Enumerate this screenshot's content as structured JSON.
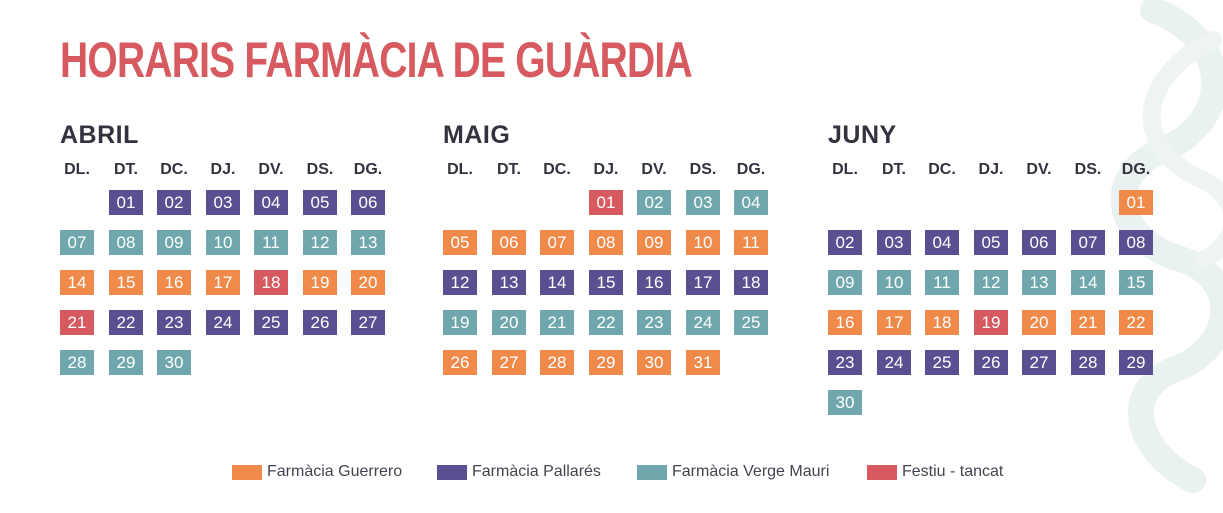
{
  "title": "HORARIS FARMÀCIA DE GUÀRDIA",
  "colors": {
    "G": "#f08a4b",
    "P": "#5b4f91",
    "V": "#6fa7ad",
    "F": "#d65a60"
  },
  "weekdays": [
    "DL.",
    "DT.",
    "DC.",
    "DJ.",
    "DV.",
    "DS.",
    "DG."
  ],
  "months": [
    {
      "name": "ABRIL",
      "days": [
        {
          "d": "01",
          "c": "P"
        },
        {
          "d": "02",
          "c": "P"
        },
        {
          "d": "03",
          "c": "P"
        },
        {
          "d": "04",
          "c": "P"
        },
        {
          "d": "05",
          "c": "P"
        },
        {
          "d": "06",
          "c": "P"
        },
        {
          "d": "07",
          "c": "V"
        },
        {
          "d": "08",
          "c": "V"
        },
        {
          "d": "09",
          "c": "V"
        },
        {
          "d": "10",
          "c": "V"
        },
        {
          "d": "11",
          "c": "V"
        },
        {
          "d": "12",
          "c": "V"
        },
        {
          "d": "13",
          "c": "V"
        },
        {
          "d": "14",
          "c": "G"
        },
        {
          "d": "15",
          "c": "G"
        },
        {
          "d": "16",
          "c": "G"
        },
        {
          "d": "17",
          "c": "G"
        },
        {
          "d": "18",
          "c": "F"
        },
        {
          "d": "19",
          "c": "G"
        },
        {
          "d": "20",
          "c": "G"
        },
        {
          "d": "21",
          "c": "F"
        },
        {
          "d": "22",
          "c": "P"
        },
        {
          "d": "23",
          "c": "P"
        },
        {
          "d": "24",
          "c": "P"
        },
        {
          "d": "25",
          "c": "P"
        },
        {
          "d": "26",
          "c": "P"
        },
        {
          "d": "27",
          "c": "P"
        },
        {
          "d": "28",
          "c": "V"
        },
        {
          "d": "29",
          "c": "V"
        },
        {
          "d": "30",
          "c": "V"
        }
      ]
    },
    {
      "name": "MAIG",
      "days": [
        {
          "d": "01",
          "c": "F"
        },
        {
          "d": "02",
          "c": "V"
        },
        {
          "d": "03",
          "c": "V"
        },
        {
          "d": "04",
          "c": "V"
        },
        {
          "d": "05",
          "c": "G"
        },
        {
          "d": "06",
          "c": "G"
        },
        {
          "d": "07",
          "c": "G"
        },
        {
          "d": "08",
          "c": "G"
        },
        {
          "d": "09",
          "c": "G"
        },
        {
          "d": "10",
          "c": "G"
        },
        {
          "d": "11",
          "c": "G"
        },
        {
          "d": "12",
          "c": "P"
        },
        {
          "d": "13",
          "c": "P"
        },
        {
          "d": "14",
          "c": "P"
        },
        {
          "d": "15",
          "c": "P"
        },
        {
          "d": "16",
          "c": "P"
        },
        {
          "d": "17",
          "c": "P"
        },
        {
          "d": "18",
          "c": "P"
        },
        {
          "d": "19",
          "c": "V"
        },
        {
          "d": "20",
          "c": "V"
        },
        {
          "d": "21",
          "c": "V"
        },
        {
          "d": "22",
          "c": "V"
        },
        {
          "d": "23",
          "c": "V"
        },
        {
          "d": "24",
          "c": "V"
        },
        {
          "d": "25",
          "c": "V"
        },
        {
          "d": "26",
          "c": "G"
        },
        {
          "d": "27",
          "c": "G"
        },
        {
          "d": "28",
          "c": "G"
        },
        {
          "d": "29",
          "c": "G"
        },
        {
          "d": "30",
          "c": "G"
        },
        {
          "d": "31",
          "c": "G"
        }
      ]
    },
    {
      "name": "JUNY",
      "days": [
        {
          "d": "01",
          "c": "G"
        },
        {
          "d": "02",
          "c": "P"
        },
        {
          "d": "03",
          "c": "P"
        },
        {
          "d": "04",
          "c": "P"
        },
        {
          "d": "05",
          "c": "P"
        },
        {
          "d": "06",
          "c": "P"
        },
        {
          "d": "07",
          "c": "P"
        },
        {
          "d": "08",
          "c": "P"
        },
        {
          "d": "09",
          "c": "V"
        },
        {
          "d": "10",
          "c": "V"
        },
        {
          "d": "11",
          "c": "V"
        },
        {
          "d": "12",
          "c": "V"
        },
        {
          "d": "13",
          "c": "V"
        },
        {
          "d": "14",
          "c": "V"
        },
        {
          "d": "15",
          "c": "V"
        },
        {
          "d": "16",
          "c": "G"
        },
        {
          "d": "17",
          "c": "G"
        },
        {
          "d": "18",
          "c": "G"
        },
        {
          "d": "19",
          "c": "F"
        },
        {
          "d": "20",
          "c": "G"
        },
        {
          "d": "21",
          "c": "G"
        },
        {
          "d": "22",
          "c": "G"
        },
        {
          "d": "23",
          "c": "P"
        },
        {
          "d": "24",
          "c": "P"
        },
        {
          "d": "25",
          "c": "P"
        },
        {
          "d": "26",
          "c": "P"
        },
        {
          "d": "27",
          "c": "P"
        },
        {
          "d": "28",
          "c": "P"
        },
        {
          "d": "29",
          "c": "P"
        },
        {
          "d": "30",
          "c": "V"
        }
      ]
    }
  ],
  "legend": [
    {
      "label": "Farmàcia Guerrero",
      "c": "G"
    },
    {
      "label": "Farmàcia Pallarés",
      "c": "P"
    },
    {
      "label": "Farmàcia Verge Mauri",
      "c": "V"
    },
    {
      "label": "Festiu - tancat",
      "c": "F"
    }
  ]
}
